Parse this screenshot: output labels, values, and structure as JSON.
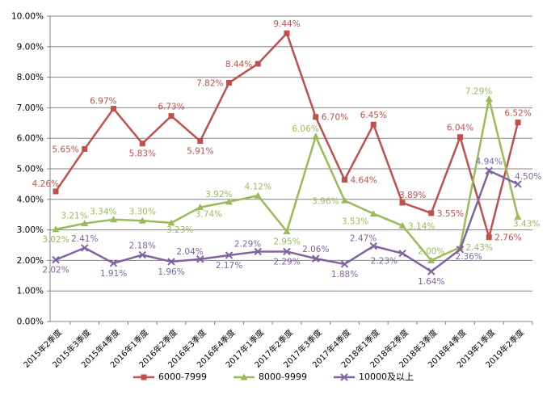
{
  "chart_data": {
    "type": "line",
    "title": "",
    "xlabel": "",
    "ylabel": "",
    "categories": [
      "2015年2季度",
      "2015年3季度",
      "2015年4季度",
      "2016年1季度",
      "2016年2季度",
      "2016年3季度",
      "2016年4季度",
      "2017年1季度",
      "2017年2季度",
      "2017年3季度",
      "2017年4季度",
      "2018年1季度",
      "2018年2季度",
      "2018年3季度",
      "2018年4季度",
      "2019年1季度",
      "2019年2季度"
    ],
    "series": [
      {
        "name": "6000-7999",
        "color": "#C0504D",
        "marker": "square",
        "values": [
          4.26,
          5.65,
          6.97,
          5.83,
          6.73,
          5.91,
          7.82,
          8.44,
          9.44,
          6.7,
          4.64,
          6.45,
          3.89,
          3.55,
          6.04,
          2.76,
          6.52
        ],
        "label_pos": [
          "above-left",
          "left",
          "above-left",
          "below",
          "above",
          "below",
          "left",
          "left",
          "above",
          "right",
          "right",
          "above",
          "above-right",
          "right",
          "above",
          "right",
          "above"
        ]
      },
      {
        "name": "8000-9999",
        "color": "#9BBB59",
        "marker": "triangle",
        "values": [
          3.02,
          3.21,
          3.34,
          3.3,
          3.23,
          3.74,
          3.92,
          4.12,
          2.95,
          6.06,
          3.96,
          3.53,
          3.14,
          2.0,
          2.43,
          7.29,
          3.43
        ],
        "label_pos": [
          "below",
          "above-left",
          "above-left",
          "above",
          "below-right",
          "below-right",
          "above-left",
          "above",
          "below",
          "above-left",
          "left",
          "below-left",
          "right",
          "above",
          "right",
          "above-left",
          "below-right"
        ]
      },
      {
        "name": "10000及以上",
        "color": "#8064A2",
        "marker": "x",
        "values": [
          2.02,
          2.41,
          1.91,
          2.18,
          1.96,
          2.04,
          2.17,
          2.29,
          2.29,
          2.06,
          1.88,
          2.47,
          2.23,
          1.64,
          2.36,
          4.94,
          4.5
        ],
        "label_pos": [
          "below",
          "above",
          "below",
          "above",
          "below",
          "above-left",
          "below",
          "above-left",
          "below",
          "above",
          "below",
          "above-left",
          "below-left",
          "below",
          "below-right",
          "above",
          "above-right"
        ]
      }
    ],
    "ylim": [
      0,
      10
    ],
    "y_tick_step": 1,
    "y_tick_labels": [
      "0.00%",
      "1.00%",
      "2.00%",
      "3.00%",
      "4.00%",
      "5.00%",
      "6.00%",
      "7.00%",
      "8.00%",
      "9.00%",
      "10.00%"
    ],
    "value_label_format": "0.00%",
    "grid": "horizontal",
    "legend_position": "bottom",
    "grid_color": "#858585",
    "axis_color": "#858585",
    "text_color": "#000000"
  }
}
